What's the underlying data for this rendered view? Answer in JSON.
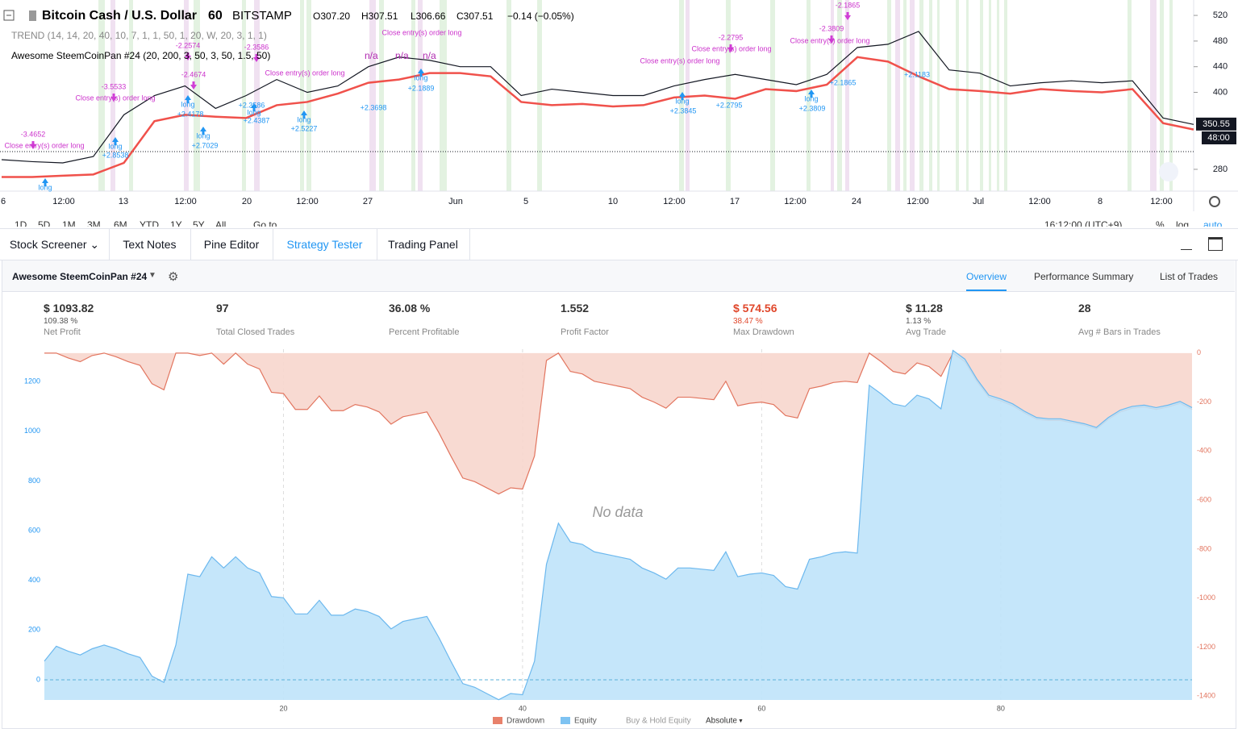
{
  "header": {
    "symbol": "Bitcoin Cash / U.S. Dollar",
    "interval": "60",
    "exchange": "BITSTAMP",
    "open": "O307.20",
    "high": "H307.51",
    "low": "L306.66",
    "close": "C307.51",
    "change": "−0.14 (−0.05%)"
  },
  "indicators": {
    "trend": "TREND (14, 14, 20, 40, 10, 7, 1, 1, 50, 1, 20, W, 20, 3, 1, 1)",
    "strategy": "Awesome SteemCoinPan #24 (20, 200, 3, 50, 3, 50, 1.5, 50)",
    "values": [
      "n/a",
      "n/a",
      "n/a"
    ]
  },
  "chart_data": [
    {
      "type": "line",
      "series": [
        {
          "color": "#131722",
          "values": [
            295,
            292,
            290,
            300,
            365,
            395,
            410,
            375,
            395,
            420,
            400,
            410,
            440,
            455,
            450,
            440,
            440,
            395,
            405,
            400,
            395,
            395,
            410,
            420,
            428,
            420,
            412,
            428,
            470,
            475,
            495,
            435,
            430,
            410,
            415,
            418,
            415,
            418,
            360,
            350
          ]
        },
        {
          "color": "#f0514b",
          "values": [
            268,
            268,
            270,
            272,
            290,
            355,
            365,
            362,
            360,
            380,
            385,
            398,
            415,
            420,
            430,
            430,
            425,
            385,
            380,
            382,
            378,
            380,
            392,
            395,
            390,
            405,
            402,
            412,
            455,
            448,
            425,
            405,
            402,
            398,
            405,
            402,
            400,
            405,
            352,
            342
          ]
        }
      ],
      "ylim": [
        246,
        544
      ],
      "yticks": [
        280,
        400,
        440,
        480,
        520
      ],
      "price_label": 350.55,
      "countdown": "48:00",
      "x_labels": [
        "6",
        "12:00",
        "13",
        "12:00",
        "20",
        "12:00",
        "27",
        "Jun",
        "5",
        "10",
        "12:00",
        "17",
        "12:00",
        "24",
        "12:00",
        "Jul",
        "12:00",
        "8",
        "12:00"
      ],
      "annotations": [
        "-3.4652",
        "Close entry(s) order long",
        "long",
        "+2.8538",
        "long",
        "Close entry(s) order long",
        "-3.5533",
        "-2.2574",
        "-2.4674",
        "long",
        "+2.4178",
        "long",
        "+2.7029",
        "-2.3586",
        "long",
        "+2.4387",
        "+2.3586",
        "Close entry(s) order long",
        "long",
        "+2.5227",
        "Close entry(s) order long",
        "+2.3698",
        "long",
        "+2.1889",
        "-2.2795",
        "Close entry(s) order long",
        "long",
        "+2.3845",
        "+2.2795",
        "Close entry(s) order long",
        "long",
        "+2.3809",
        "-2.3809",
        "Close entry(s) order long",
        "+2.1865",
        "-2.1865",
        "+2.1183"
      ]
    },
    {
      "type": "area",
      "series": [
        {
          "name": "Drawdown",
          "color": "#e2755f",
          "axis": "y2",
          "values": [
            0,
            0,
            -20,
            -35,
            -10,
            0,
            -15,
            -35,
            -50,
            -125,
            -150,
            0,
            0,
            -10,
            0,
            -45,
            0,
            -45,
            -65,
            -160,
            -165,
            -230,
            -230,
            -175,
            -235,
            -235,
            -210,
            -220,
            -240,
            -290,
            -260,
            -250,
            -240,
            -325,
            -420,
            -510,
            -525,
            -550,
            -575,
            -550,
            -555,
            -420,
            -30,
            0,
            -75,
            -85,
            -115,
            -125,
            -135,
            -145,
            -180,
            -200,
            -225,
            -180,
            -180,
            -185,
            -190,
            -115,
            -215,
            -205,
            -200,
            -210,
            -255,
            -265,
            -145,
            -135,
            -120,
            -115,
            -120,
            0,
            -35,
            -75,
            -85,
            -40,
            -55,
            -95,
            0,
            -35,
            -115,
            -180,
            -195,
            -215,
            -245,
            -270,
            -275,
            -275,
            -285,
            -295,
            -310,
            -270,
            -240,
            -225,
            -220,
            -230,
            -220,
            -205,
            -230
          ]
        },
        {
          "name": "Equity",
          "color": "#6cb8ee",
          "values": [
            75,
            135,
            115,
            100,
            125,
            140,
            125,
            105,
            90,
            15,
            -10,
            140,
            425,
            415,
            495,
            450,
            495,
            450,
            430,
            335,
            330,
            265,
            265,
            320,
            260,
            260,
            285,
            275,
            255,
            205,
            235,
            245,
            255,
            170,
            75,
            -15,
            -30,
            -55,
            -80,
            -55,
            -60,
            75,
            465,
            630,
            555,
            545,
            515,
            505,
            495,
            485,
            450,
            430,
            405,
            450,
            450,
            445,
            440,
            515,
            415,
            425,
            430,
            420,
            375,
            365,
            485,
            495,
            510,
            515,
            510,
            1185,
            1150,
            1110,
            1100,
            1145,
            1130,
            1090,
            1325,
            1290,
            1210,
            1145,
            1130,
            1110,
            1080,
            1055,
            1050,
            1050,
            1040,
            1030,
            1015,
            1055,
            1085,
            1100,
            1105,
            1095,
            1105,
            1120,
            1095
          ]
        }
      ],
      "xlim": [
        0,
        96
      ],
      "xticks": [
        20,
        40,
        60,
        80
      ],
      "ylim": [
        -81,
        1330
      ],
      "yticks": [
        0,
        200,
        400,
        600,
        800,
        1000,
        1200
      ],
      "y2lim": [
        -1416,
        16
      ],
      "y2ticks": [
        0,
        -200,
        -400,
        -600,
        -800,
        -1000,
        -1200,
        -1400
      ],
      "no_data": "No data",
      "buy_hold": "Buy & Hold Equity",
      "mode": "Absolute"
    }
  ],
  "toolbar": {
    "ranges": [
      "1D",
      "5D",
      "1M",
      "3M",
      "6M",
      "YTD",
      "1Y",
      "5Y",
      "All",
      "Go to..."
    ],
    "time": "16:12:00 (UTC+9)",
    "percent": "%",
    "log": "log",
    "auto": "auto"
  },
  "tabs": [
    "Stock Screener",
    "Text Notes",
    "Pine Editor",
    "Strategy Tester",
    "Trading Panel"
  ],
  "strategy": {
    "name": "Awesome SteemCoinPan #24",
    "tabs": [
      "Overview",
      "Performance Summary",
      "List of Trades"
    ],
    "stats": [
      {
        "value": "$ 1093.82",
        "sub": "109.38 %",
        "label": "Net Profit"
      },
      {
        "value": "97",
        "label": "Total Closed Trades"
      },
      {
        "value": "36.08 %",
        "label": "Percent Profitable"
      },
      {
        "value": "1.552",
        "label": "Profit Factor"
      },
      {
        "value": "$ 574.56",
        "sub": "38.47 %",
        "label": "Max Drawdown"
      },
      {
        "value": "$ 11.28",
        "sub": "1.13 %",
        "label": "Avg Trade"
      },
      {
        "value": "28",
        "label": "Avg # Bars in Trades"
      }
    ]
  }
}
